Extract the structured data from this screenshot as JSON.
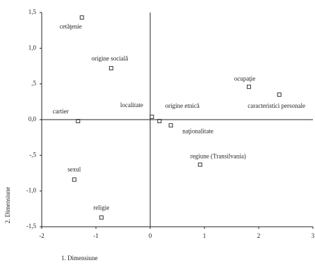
{
  "chart_data": {
    "type": "scatter",
    "x_label": "1. Dimensiune",
    "y_label": "2. Dimensiune",
    "labels": [
      "cetăţenie",
      "origine socială",
      "ocupaţie",
      "caracteristici personale",
      "cartier",
      "localitate",
      "origine etnică",
      "naţionalitate",
      "regiune (Transilvania)",
      "sexul",
      "religie"
    ],
    "x": [
      -1.26,
      -0.72,
      1.82,
      2.38,
      -1.33,
      0.03,
      0.17,
      0.38,
      0.92,
      -1.4,
      -0.9
    ],
    "y": [
      1.43,
      0.72,
      0.46,
      0.35,
      -0.02,
      0.04,
      -0.02,
      -0.08,
      -0.63,
      -0.84,
      -1.37
    ],
    "color": "#333333",
    "xlim": [
      -2,
      3
    ],
    "ylim": [
      -1.5,
      1.5
    ],
    "xticks": [
      -2,
      -1,
      0,
      1,
      2,
      3
    ],
    "yticks": [
      {
        "value": 1.5,
        "label": "1,5"
      },
      {
        "value": 1,
        "label": "1,0"
      },
      {
        "value": 0.5,
        "label": ",5"
      },
      {
        "value": 0,
        "label": "0,0"
      },
      {
        "value": -0.5,
        "label": "-,5"
      },
      {
        "value": -1,
        "label": "-1,0"
      },
      {
        "value": -1.5,
        "label": "-1,5"
      }
    ]
  }
}
